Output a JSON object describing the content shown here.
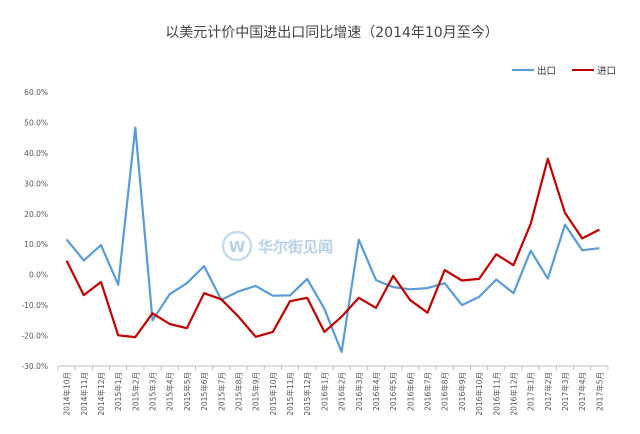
{
  "chart_data": {
    "type": "line",
    "title": "以美元计价中国进出口同比增速（2014年10月至今）",
    "categories": [
      "2014年10月",
      "2014年11月",
      "2014年12月",
      "2015年1月",
      "2015年2月",
      "2015年3月",
      "2015年4月",
      "2015年5月",
      "2015年6月",
      "2015年7月",
      "2015年8月",
      "2015年9月",
      "2015年10月",
      "2015年11月",
      "2015年12月",
      "2016年1月",
      "2016年2月",
      "2016年3月",
      "2016年4月",
      "2016年5月",
      "2016年6月",
      "2016年7月",
      "2016年8月",
      "2016年9月",
      "2016年10月",
      "2016年11月",
      "2016年12月",
      "2017年1月",
      "2017年2月",
      "2017年3月",
      "2017年4月",
      "2017年5月"
    ],
    "series": [
      {
        "name": "出口",
        "color": "#5b9bd5",
        "values": [
          11.6,
          4.7,
          9.7,
          -3.3,
          48.3,
          -15.0,
          -6.4,
          -2.8,
          2.8,
          -8.3,
          -5.5,
          -3.7,
          -6.9,
          -6.8,
          -1.4,
          -11.2,
          -25.4,
          11.5,
          -1.8,
          -4.1,
          -4.8,
          -4.4,
          -2.8,
          -10.0,
          -7.3,
          -1.6,
          -6.1,
          7.9,
          -1.3,
          16.4,
          8.0,
          8.7
        ]
      },
      {
        "name": "进口",
        "color": "#c00000",
        "values": [
          4.6,
          -6.7,
          -2.4,
          -19.9,
          -20.5,
          -12.7,
          -16.2,
          -17.6,
          -6.1,
          -8.1,
          -13.8,
          -20.4,
          -18.8,
          -8.7,
          -7.6,
          -18.8,
          -13.8,
          -7.6,
          -10.9,
          -0.4,
          -8.4,
          -12.5,
          1.5,
          -1.9,
          -1.4,
          6.7,
          3.1,
          16.7,
          38.1,
          20.3,
          11.9,
          14.8
        ]
      }
    ],
    "ylim": [
      -30,
      60
    ],
    "yticks": [
      "-30.0%",
      "-20.0%",
      "-10.0%",
      "0.0%",
      "10.0%",
      "20.0%",
      "30.0%",
      "40.0%",
      "50.0%",
      "60.0%"
    ],
    "ytick_values": [
      -30,
      -20,
      -10,
      0,
      10,
      20,
      30,
      40,
      50,
      60
    ],
    "grid": false,
    "legend_position": "top-right",
    "xlabel": "",
    "ylabel": ""
  },
  "watermark": {
    "text": "华尔街见闻",
    "color": "#b9d1e6"
  }
}
